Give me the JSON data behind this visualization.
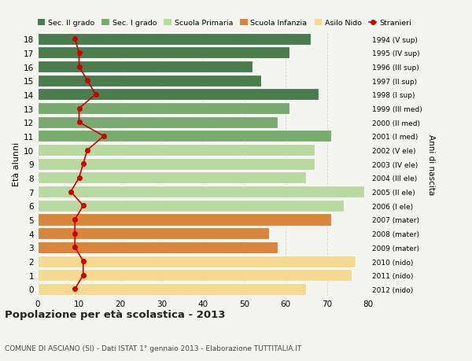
{
  "ages": [
    18,
    17,
    16,
    15,
    14,
    13,
    12,
    11,
    10,
    9,
    8,
    7,
    6,
    5,
    4,
    3,
    2,
    1,
    0
  ],
  "bar_values": [
    66,
    61,
    52,
    54,
    68,
    61,
    58,
    71,
    67,
    67,
    65,
    79,
    74,
    71,
    56,
    58,
    77,
    76,
    65
  ],
  "stranieri": [
    9,
    10,
    10,
    12,
    14,
    10,
    10,
    16,
    12,
    11,
    10,
    8,
    11,
    9,
    9,
    9,
    11,
    11,
    9
  ],
  "bar_colors": [
    "#4a7c4e",
    "#4a7c4e",
    "#4a7c4e",
    "#4a7c4e",
    "#4a7c4e",
    "#7aab6e",
    "#7aab6e",
    "#7aab6e",
    "#b8d9a0",
    "#b8d9a0",
    "#b8d9a0",
    "#b8d9a0",
    "#b8d9a0",
    "#d9853b",
    "#d9853b",
    "#d9853b",
    "#f5d98e",
    "#f5d98e",
    "#f5d98e"
  ],
  "right_labels": [
    "1994 (V sup)",
    "1995 (IV sup)",
    "1996 (III sup)",
    "1997 (II sup)",
    "1998 (I sup)",
    "1999 (III med)",
    "2000 (II med)",
    "2001 (I med)",
    "2002 (V ele)",
    "2003 (IV ele)",
    "2004 (III ele)",
    "2005 (II ele)",
    "2006 (I ele)",
    "2007 (mater)",
    "2008 (mater)",
    "2009 (mater)",
    "2010 (nido)",
    "2011 (nido)",
    "2012 (nido)"
  ],
  "ylabel_left": "Età alunni",
  "ylabel_right": "Anni di nascita",
  "xlim": [
    0,
    80
  ],
  "xticks": [
    0,
    10,
    20,
    30,
    40,
    50,
    60,
    70,
    80
  ],
  "title_main": "Popolazione per età scolastica - 2013",
  "title_sub": "COMUNE DI ASCIANO (SI) - Dati ISTAT 1° gennaio 2013 - Elaborazione TUTTITALIA.IT",
  "legend_items": [
    {
      "label": "Sec. II grado",
      "color": "#4a7c4e"
    },
    {
      "label": "Sec. I grado",
      "color": "#7aab6e"
    },
    {
      "label": "Scuola Primaria",
      "color": "#b8d9a0"
    },
    {
      "label": "Scuola Infanzia",
      "color": "#d9853b"
    },
    {
      "label": "Asilo Nido",
      "color": "#f5d98e"
    },
    {
      "label": "Stranieri",
      "color": "#cc0000"
    }
  ],
  "background_color": "#f5f5f0",
  "bar_edge_color": "#ffffff",
  "stranieri_line_color": "#cc0000",
  "grid_color": "#cccccc"
}
